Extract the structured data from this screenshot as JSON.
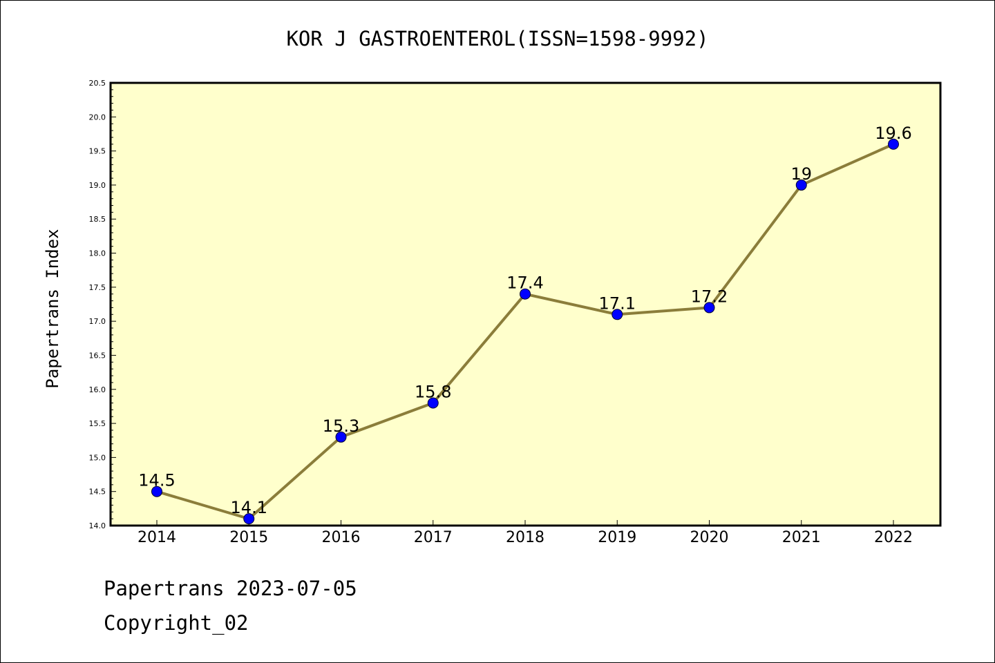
{
  "chart_data": {
    "type": "line",
    "title": "KOR J GASTROENTEROL(ISSN=1598-9992)",
    "xlabel": "",
    "ylabel": "Papertrans Index",
    "x": [
      2014,
      2015,
      2016,
      2017,
      2018,
      2019,
      2020,
      2021,
      2022
    ],
    "categories": [
      "2014",
      "2015",
      "2016",
      "2017",
      "2018",
      "2019",
      "2020",
      "2021",
      "2022"
    ],
    "values": [
      14.5,
      14.1,
      15.3,
      15.8,
      17.4,
      17.1,
      17.2,
      19,
      19.6
    ],
    "data_labels": [
      "14.5",
      "14.1",
      "15.3",
      "15.8",
      "17.4",
      "17.1",
      "17.2",
      "19",
      "19.6"
    ],
    "ylim": [
      14.0,
      20.5
    ],
    "yticks": [
      "14.0",
      "14.5",
      "15.0",
      "15.5",
      "16.0",
      "16.5",
      "17.0",
      "17.5",
      "18.0",
      "18.5",
      "19.0",
      "19.5",
      "20.0",
      "20.5"
    ],
    "grid": false,
    "legend": "none",
    "colors": {
      "line": "#8b7d3a",
      "marker": "#0000ff",
      "plot_background": "#ffffcc",
      "axes": "#000000"
    }
  },
  "footer": {
    "line1": "Papertrans 2023-07-05",
    "line2": "Copyright_02"
  }
}
